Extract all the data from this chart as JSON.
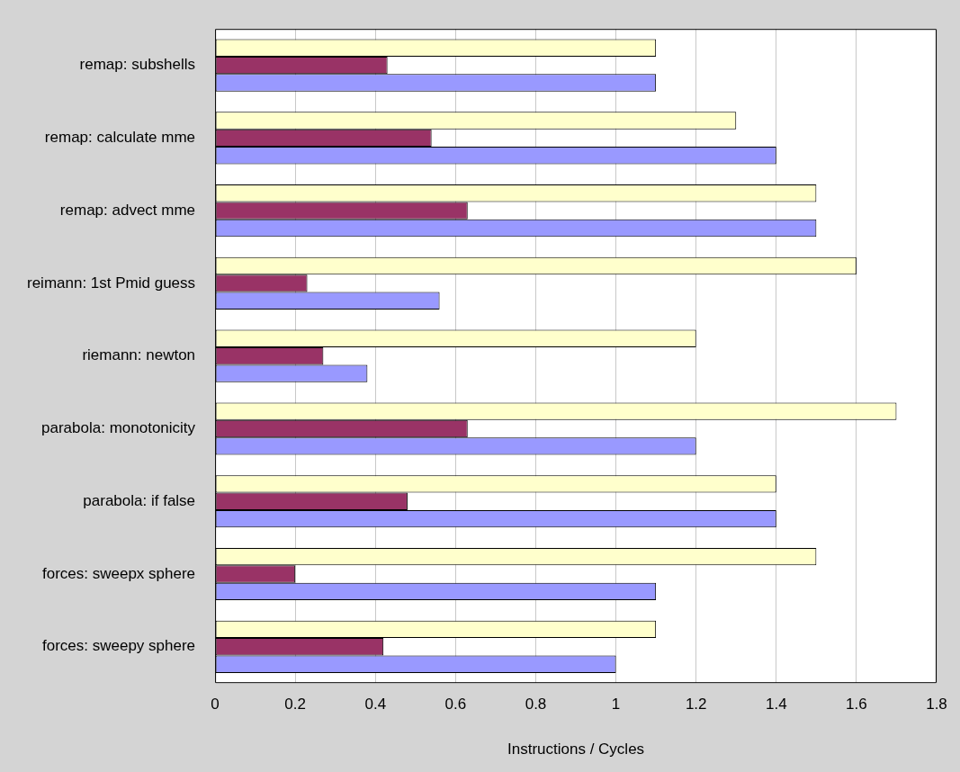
{
  "chart_data": {
    "type": "bar",
    "orientation": "horizontal",
    "xlabel": "Instructions / Cycles",
    "categories": [
      "remap: subshells",
      "remap: calculate mme",
      "remap: advect mme",
      "reimann: 1st Pmid guess",
      "riemann: newton",
      "parabola: monotonicity",
      "parabola: if false",
      "forces: sweepx sphere",
      "forces: sweepy sphere"
    ],
    "series": [
      {
        "color": "#ffffcc",
        "values": [
          1.1,
          1.3,
          1.5,
          1.6,
          1.2,
          1.7,
          1.4,
          1.5,
          1.1
        ]
      },
      {
        "color": "#993366",
        "values": [
          0.43,
          0.54,
          0.63,
          0.23,
          0.27,
          0.63,
          0.48,
          0.2,
          0.42
        ]
      },
      {
        "color": "#9999ff",
        "values": [
          1.1,
          1.4,
          1.5,
          0.56,
          0.38,
          1.2,
          1.4,
          1.1,
          1.0
        ]
      }
    ],
    "xlim": [
      0,
      1.8
    ],
    "xticks": [
      0,
      0.2,
      0.4,
      0.6,
      0.8,
      1,
      1.2,
      1.4,
      1.6,
      1.8
    ],
    "grid": "x",
    "legend": false
  }
}
